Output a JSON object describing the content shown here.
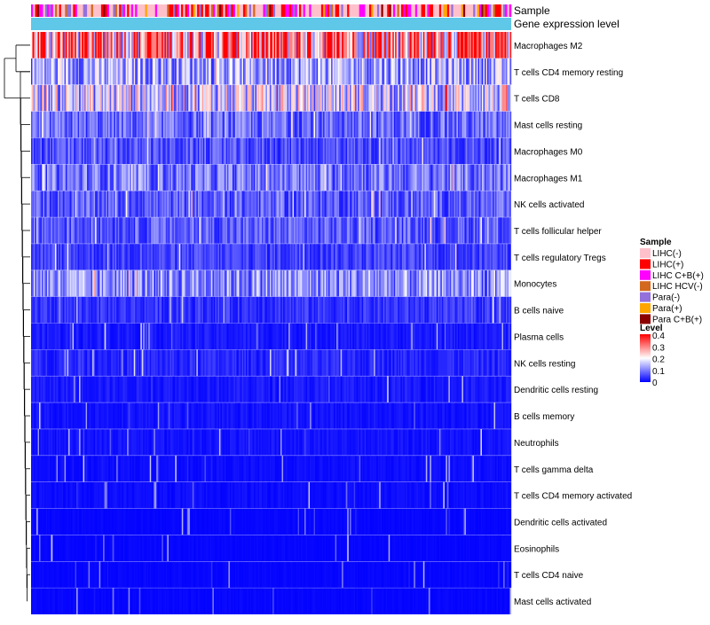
{
  "chart_data": {
    "type": "heatmap",
    "title": "",
    "annotation_tracks": [
      "Sample",
      "Gene expression level"
    ],
    "rows": [
      "Macrophages M2",
      "T cells CD4 memory resting",
      "T cells CD8",
      "Mast cells resting",
      "Macrophages M0",
      "Macrophages M1",
      "NK cells activated",
      "T cells follicular helper",
      "T cells regulatory  Tregs",
      "Monocytes",
      "B cells naive",
      "Plasma cells",
      "NK cells resting",
      "Dendritic cells resting",
      "B cells memory",
      "Neutrophils",
      "T cells gamma delta",
      "T cells CD4 memory activated",
      "Dendritic cells activated",
      "Eosinophils",
      "T cells CD4 naive",
      "Mast cells activated"
    ],
    "row_typical_level": [
      0.3,
      0.13,
      0.17,
      0.08,
      0.06,
      0.09,
      0.07,
      0.07,
      0.05,
      0.11,
      0.04,
      0.02,
      0.03,
      0.02,
      0.015,
      0.015,
      0.01,
      0.01,
      0.005,
      0.005,
      0.005,
      0.005
    ],
    "level_range": [
      0,
      0.4
    ],
    "legend": {
      "sample_title": "Sample",
      "sample_entries": [
        {
          "label": "LIHC(-)",
          "color": "#ffc0cb"
        },
        {
          "label": "LIHC(+)",
          "color": "#ff0000"
        },
        {
          "label": "LIHC C+B(+)",
          "color": "#ff00ff"
        },
        {
          "label": "LIHC HCV(-)",
          "color": "#d2691e"
        },
        {
          "label": "Para(-)",
          "color": "#9370db"
        },
        {
          "label": "Para(+)",
          "color": "#ffa500"
        },
        {
          "label": "Para C+B(+)",
          "color": "#8b0000"
        }
      ],
      "level_title": "Level",
      "level_ticks": [
        "0.4",
        "0.3",
        "0.2",
        "0.1",
        "0"
      ],
      "level_colors": [
        "#0000ff",
        "#ffffff",
        "#ff0000"
      ]
    },
    "expression_track_color": "#5fc7e8"
  }
}
